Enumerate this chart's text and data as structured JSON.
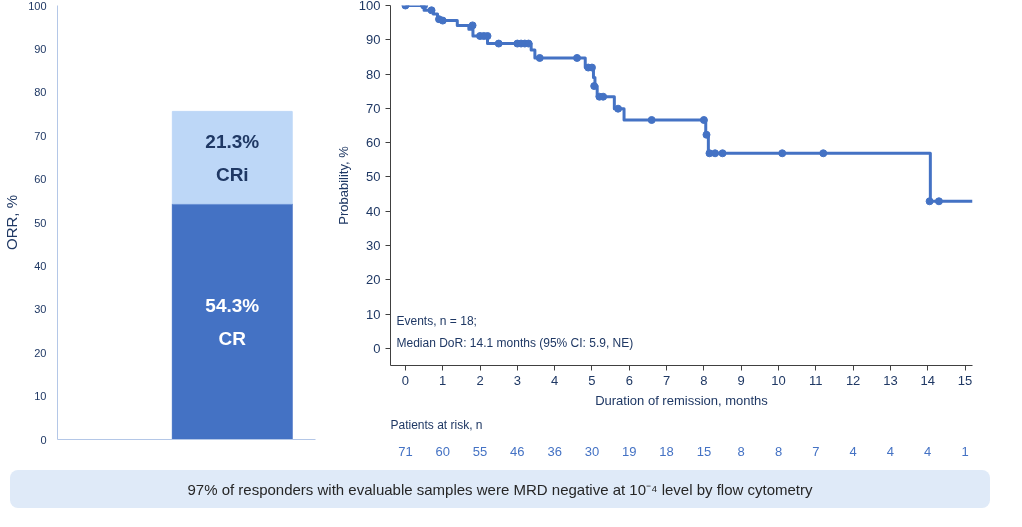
{
  "chart_data": [
    {
      "type": "bar",
      "stacked": true,
      "categories": [
        null
      ],
      "ylabel": "ORR, %",
      "ylim": [
        0,
        100
      ],
      "yticks": [
        0,
        10,
        20,
        30,
        40,
        50,
        60,
        70,
        80,
        90,
        100
      ],
      "tick_labels": "y",
      "series": [
        {
          "name": "CR",
          "color": "#4472c4",
          "values": [
            54.3
          ],
          "value_labels": [
            "54.3%"
          ]
        },
        {
          "name": "CRi",
          "color": "#bdd7f7",
          "values": [
            21.3
          ],
          "value_labels": [
            "21.3%"
          ]
        }
      ]
    },
    {
      "type": "step",
      "xlabel": "Duration of remission, months",
      "ylabel": "Probability, %",
      "xlim": [
        -0.4,
        15.2
      ],
      "ylim": [
        -5,
        100
      ],
      "xticks": [
        0,
        1,
        2,
        3,
        4,
        5,
        6,
        7,
        8,
        9,
        10,
        11,
        12,
        13,
        14,
        15
      ],
      "yticks": [
        0,
        10,
        20,
        30,
        40,
        50,
        60,
        70,
        80,
        90,
        100
      ],
      "series": [
        {
          "type": "step",
          "color": "#4472c4",
          "marker": "none",
          "x": [
            0,
            0.5,
            0.75,
            0.86,
            1.39,
            1.7,
            1.81,
            2.2,
            3.37,
            3.47,
            4.82,
            5.04,
            5.08,
            5.14,
            5.6,
            5.86,
            8.05,
            8.12,
            14.07,
            15.2
          ],
          "values": [
            100,
            98.6,
            97.5,
            95.6,
            94.2,
            93.1,
            91.1,
            88.9,
            87,
            84.7,
            81.9,
            79,
            76.5,
            73.4,
            69.9,
            66.6,
            62.3,
            56.9,
            42.9,
            42.9
          ]
        },
        {
          "type": "scatter",
          "color": "#4472c4",
          "marker": "circle",
          "x": [
            0,
            0.5,
            0.7,
            0.9,
            1.0,
            1.8,
            2.0,
            2.1,
            2.2,
            2.5,
            3.0,
            3.1,
            3.2,
            3.3,
            3.6,
            4.6,
            4.9,
            5.0,
            5.06,
            5.2,
            5.3,
            5.7,
            6.6,
            8.0,
            8.07,
            8.15,
            8.3,
            8.5,
            10.1,
            11.2,
            14.05,
            14.3
          ],
          "values": [
            100,
            100,
            98.6,
            96,
            95.6,
            94.2,
            91.1,
            91.1,
            91.1,
            88.9,
            88.9,
            88.9,
            88.9,
            88.9,
            84.7,
            84.7,
            81.9,
            81.9,
            76.5,
            73.4,
            73.4,
            69.9,
            66.6,
            66.6,
            62.3,
            56.9,
            56.9,
            56.9,
            56.9,
            56.9,
            42.9,
            42.9
          ]
        }
      ],
      "annotations": [
        "Events, n = 18;",
        "Median DoR: 14.1 months (95% CI: 5.9, NE)",
        "Patients at risk, n",
        "71",
        "60",
        "55",
        "46",
        "36",
        "30",
        "19",
        "18",
        "15",
        "8",
        "8",
        "7",
        "4",
        "4",
        "4",
        "1"
      ]
    },
    {
      "type": "other",
      "annotations": [
        "97% of responders with evaluable samples were MRD negative at 10⁻⁴ level by flow cytometry"
      ]
    }
  ]
}
